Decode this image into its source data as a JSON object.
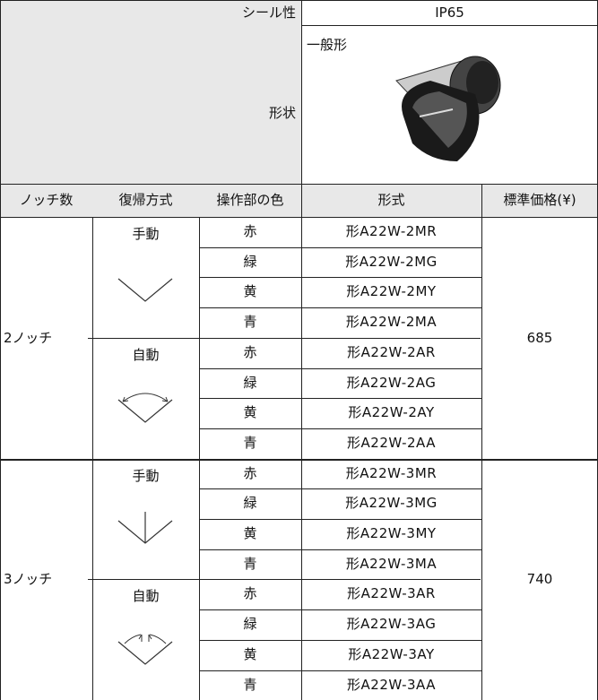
{
  "header": {
    "seal_label": "シール性",
    "seal_value": "IP65",
    "shape_label": "形状",
    "shape_type": "一般形",
    "columns": [
      "ノッチ数",
      "復帰方式",
      "操作部の色",
      "形式",
      "標準価格(¥)"
    ]
  },
  "groups": [
    {
      "notch": "2ノッチ",
      "price": 685,
      "returns": [
        {
          "label": "手動",
          "rows": [
            {
              "color": "赤",
              "model": "形A22W-2MR"
            },
            {
              "color": "緑",
              "model": "形A22W-2MG"
            },
            {
              "color": "黄",
              "model": "形A22W-2MY"
            },
            {
              "color": "青",
              "model": "形A22W-2MA"
            }
          ]
        },
        {
          "label": "自動",
          "rows": [
            {
              "color": "赤",
              "model": "形A22W-2AR"
            },
            {
              "color": "緑",
              "model": "形A22W-2AG"
            },
            {
              "color": "黄",
              "model": "形A22W-2AY"
            },
            {
              "color": "青",
              "model": "形A22W-2AA"
            }
          ]
        }
      ]
    },
    {
      "notch": "3ノッチ",
      "price": 740,
      "returns": [
        {
          "label": "手動",
          "rows": [
            {
              "color": "赤",
              "model": "形A22W-3MR"
            },
            {
              "color": "緑",
              "model": "形A22W-3MG"
            },
            {
              "color": "黄",
              "model": "形A22W-3MY"
            },
            {
              "color": "青",
              "model": "形A22W-3MA"
            }
          ]
        },
        {
          "label": "自動",
          "rows": [
            {
              "color": "赤",
              "model": "形A22W-3AR"
            },
            {
              "color": "緑",
              "model": "形A22W-3AG"
            },
            {
              "color": "黄",
              "model": "形A22W-3AY"
            },
            {
              "color": "青",
              "model": "形A22W-3AA"
            }
          ]
        }
      ]
    }
  ]
}
